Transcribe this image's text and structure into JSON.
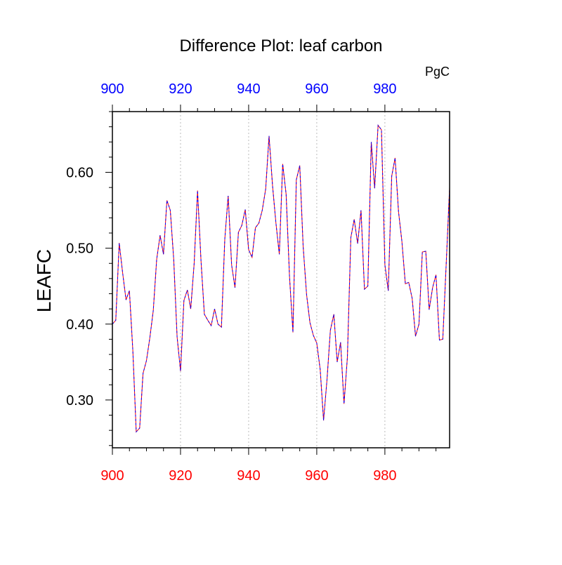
{
  "chart_data": {
    "type": "line",
    "title": "Difference Plot: leaf carbon",
    "units": "PgC",
    "ylabel": "LEAFC",
    "xlim": [
      900,
      999
    ],
    "ylim": [
      0.237,
      0.68
    ],
    "x_ticks_bottom": [
      "900",
      "920",
      "940",
      "960",
      "980"
    ],
    "x_ticks_top": [
      "900",
      "920",
      "940",
      "960",
      "980"
    ],
    "x_tick_values": [
      900,
      920,
      940,
      960,
      980
    ],
    "y_ticks": [
      "0.30",
      "0.40",
      "0.50",
      "0.60"
    ],
    "y_tick_values": [
      0.3,
      0.4,
      0.5,
      0.6
    ],
    "grid": "vertical dotted at major x ticks",
    "colors": {
      "bottom_axis_labels": "#ff0000",
      "top_axis_labels": "#0000ff",
      "series_a": "#ff0000",
      "series_b": "#0000ff"
    },
    "x": [
      900,
      901,
      902,
      903,
      904,
      905,
      906,
      907,
      908,
      909,
      910,
      911,
      912,
      913,
      914,
      915,
      916,
      917,
      918,
      919,
      920,
      921,
      922,
      923,
      924,
      925,
      926,
      927,
      928,
      929,
      930,
      931,
      932,
      933,
      934,
      935,
      936,
      937,
      938,
      939,
      940,
      941,
      942,
      943,
      944,
      945,
      946,
      947,
      948,
      949,
      950,
      951,
      952,
      953,
      954,
      955,
      956,
      957,
      958,
      959,
      960,
      961,
      962,
      963,
      964,
      965,
      966,
      967,
      968,
      969,
      970,
      971,
      972,
      973,
      974,
      975,
      976,
      977,
      978,
      979,
      980,
      981,
      982,
      983,
      984,
      985,
      986,
      987,
      988,
      989,
      990,
      991,
      992,
      993,
      994,
      995,
      996,
      997,
      998,
      999
    ],
    "series": [
      {
        "values": [
          0.4,
          0.405,
          0.507,
          0.468,
          0.432,
          0.444,
          0.365,
          0.258,
          0.263,
          0.335,
          0.352,
          0.382,
          0.418,
          0.485,
          0.517,
          0.492,
          0.563,
          0.55,
          0.485,
          0.383,
          0.338,
          0.431,
          0.445,
          0.42,
          0.48,
          0.576,
          0.484,
          0.413,
          0.405,
          0.398,
          0.42,
          0.4,
          0.396,
          0.512,
          0.569,
          0.478,
          0.448,
          0.521,
          0.53,
          0.551,
          0.498,
          0.488,
          0.527,
          0.533,
          0.55,
          0.578,
          0.648,
          0.583,
          0.534,
          0.492,
          0.611,
          0.571,
          0.463,
          0.389,
          0.59,
          0.609,
          0.503,
          0.439,
          0.402,
          0.385,
          0.375,
          0.34,
          0.273,
          0.327,
          0.392,
          0.413,
          0.35,
          0.376,
          0.295,
          0.356,
          0.514,
          0.538,
          0.506,
          0.55,
          0.446,
          0.45,
          0.64,
          0.579,
          0.662,
          0.656,
          0.478,
          0.444,
          0.595,
          0.619,
          0.548,
          0.509,
          0.453,
          0.455,
          0.434,
          0.384,
          0.4,
          0.495,
          0.496,
          0.419,
          0.448,
          0.465,
          0.379,
          0.38,
          0.48,
          0.58
        ]
      }
    ]
  }
}
